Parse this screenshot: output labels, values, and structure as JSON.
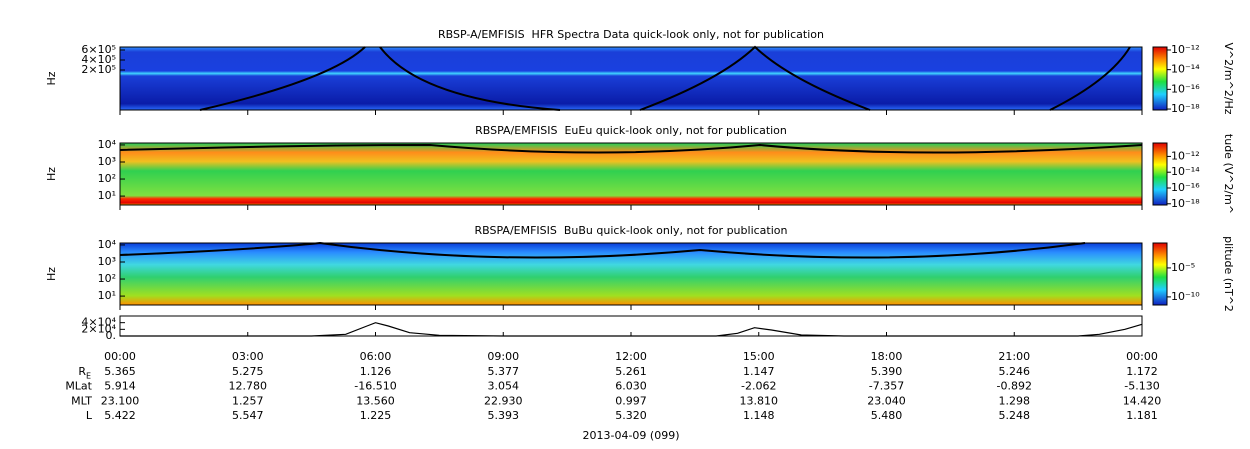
{
  "chart_data": [
    {
      "type": "spectrogram",
      "title": "RBSP-A/EMFISIS  HFR Spectra Data quick-look only, not for publication",
      "ylabel": "Hz",
      "ylim": [
        -600000,
        660000
      ],
      "yticks": [
        {
          "value": 200000,
          "label": "2×10⁵"
        },
        {
          "value": 400000,
          "label": "4×10⁵"
        },
        {
          "value": 600000,
          "label": "6×10⁵"
        }
      ],
      "colorbar_label": "V^2/m^2/Hz",
      "clim": [
        8e-19,
        2e-12
      ],
      "cticks": [
        {
          "value": 1e-12,
          "label": "10⁻¹²"
        },
        {
          "value": 1e-14,
          "label": "10⁻¹⁴"
        },
        {
          "value": 1e-16,
          "label": "10⁻¹⁶"
        },
        {
          "value": 1e-18,
          "label": "10⁻¹⁸"
        }
      ]
    },
    {
      "type": "spectrogram",
      "title": "RBSPA/EMFISIS  EuEu quick-look only, not for publication",
      "ylabel": "Hz",
      "log_scale": true,
      "ylim": [
        3,
        13000
      ],
      "yticks": [
        {
          "value": 10,
          "label": "10¹"
        },
        {
          "value": 100,
          "label": "10²"
        },
        {
          "value": 1000,
          "label": "10³"
        },
        {
          "value": 10000,
          "label": "10⁴"
        }
      ],
      "colorbar_label": "tude (V^2/m^",
      "clim": [
        7e-19,
        5e-11
      ],
      "cticks": [
        {
          "value": 1e-12,
          "label": "10⁻¹²"
        },
        {
          "value": 1e-14,
          "label": "10⁻¹⁴"
        },
        {
          "value": 1e-16,
          "label": "10⁻¹⁶"
        },
        {
          "value": 1e-18,
          "label": "10⁻¹⁸"
        }
      ]
    },
    {
      "type": "spectrogram",
      "title": "RBSPA/EMFISIS  BuBu quick-look only, not for publication",
      "ylabel": "Hz",
      "log_scale": true,
      "ylim": [
        3,
        13000
      ],
      "yticks": [
        {
          "value": 10,
          "label": "10¹"
        },
        {
          "value": 100,
          "label": "10²"
        },
        {
          "value": 1000,
          "label": "10³"
        },
        {
          "value": 10000,
          "label": "10⁴"
        }
      ],
      "colorbar_label": "plitude (nT^2",
      "clim": [
        4e-12,
        0.2
      ],
      "cticks": [
        {
          "value": 1e-05,
          "label": "10⁻⁵"
        },
        {
          "value": 1e-10,
          "label": "10⁻¹⁰"
        }
      ]
    },
    {
      "type": "line",
      "xlabel": "2013-04-09 (099)",
      "color": "#000000",
      "x": [
        0,
        4.5,
        5.3,
        5.8,
        6.0,
        6.3,
        6.8,
        7.5,
        9,
        14,
        14.5,
        14.9,
        15.3,
        16,
        17,
        22.5,
        23,
        23.6,
        24
      ],
      "values": [
        0,
        0,
        5000,
        30000,
        40000,
        30000,
        10000,
        2000,
        0,
        0,
        8000,
        25000,
        18000,
        3000,
        0,
        0,
        5000,
        20000,
        35000
      ],
      "xlim": [
        0,
        24
      ],
      "xticks": [
        {
          "value": 0,
          "label": "00:00"
        },
        {
          "value": 3,
          "label": "03:00"
        },
        {
          "value": 6,
          "label": "06:00"
        },
        {
          "value": 9,
          "label": "09:00"
        },
        {
          "value": 12,
          "label": "12:00"
        },
        {
          "value": 15,
          "label": "15:00"
        },
        {
          "value": 18,
          "label": "18:00"
        },
        {
          "value": 21,
          "label": "21:00"
        },
        {
          "value": 24,
          "label": "00:00"
        }
      ],
      "ylim": [
        0,
        60000
      ],
      "yticks": [
        {
          "value": 0,
          "label": "0."
        },
        {
          "value": 20000,
          "label": "2×10⁴"
        },
        {
          "value": 40000,
          "label": "4×10⁴"
        }
      ]
    }
  ],
  "ephemeris": {
    "rows": [
      {
        "label": "R",
        "sub": "E",
        "values": [
          "5.365",
          "5.275",
          "1.126",
          "5.377",
          "5.261",
          "1.147",
          "5.390",
          "5.246",
          "1.172"
        ]
      },
      {
        "label": "MLat",
        "values": [
          "5.914",
          "12.780",
          "-16.510",
          "3.054",
          "6.030",
          "-2.062",
          "-7.357",
          "-0.892",
          "-5.130"
        ]
      },
      {
        "label": "MLT",
        "values": [
          "23.100",
          "1.257",
          "13.560",
          "22.930",
          "0.997",
          "13.810",
          "23.040",
          "1.298",
          "14.420"
        ]
      },
      {
        "label": "L",
        "values": [
          "5.422",
          "5.547",
          "1.225",
          "5.393",
          "5.320",
          "1.148",
          "5.480",
          "5.248",
          "1.181"
        ]
      }
    ]
  }
}
